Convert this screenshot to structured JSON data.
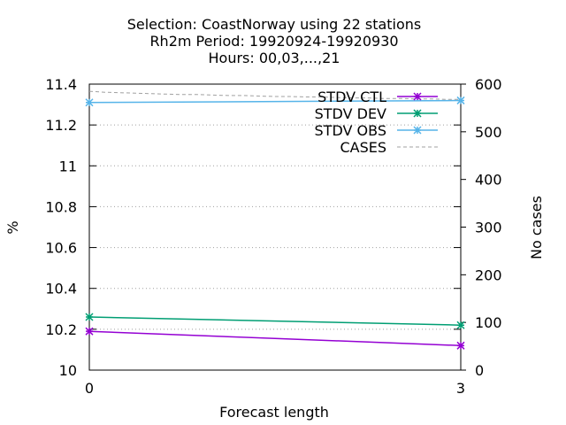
{
  "chart_data": {
    "type": "line",
    "title_lines": [
      "Selection: CoastNorway using    22 stations",
      "Rh2m   Period: 19920924-19920930",
      "Hours:  00,03,...,21"
    ],
    "xlabel": "Forecast length",
    "ylabel": "%",
    "y2label": "No cases",
    "x_ticks": [
      "0",
      "3"
    ],
    "xlim": [
      0,
      3
    ],
    "y_ticks": [
      "10",
      "10.2",
      "10.4",
      "10.6",
      "10.8",
      "11",
      "11.2",
      "11.4"
    ],
    "ylim": [
      10,
      11.4
    ],
    "y2_ticks": [
      "0",
      "100",
      "200",
      "300",
      "400",
      "500",
      "600"
    ],
    "y2lim": [
      0,
      600
    ],
    "grid": true,
    "legend_position": "top-right",
    "series": [
      {
        "name": "STDV CTL",
        "axis": "y",
        "color": "#9400d3",
        "marker": "star",
        "x": [
          0,
          3
        ],
        "values": [
          10.19,
          10.12
        ]
      },
      {
        "name": "STDV DEV",
        "axis": "y",
        "color": "#009e73",
        "marker": "star",
        "x": [
          0,
          3
        ],
        "values": [
          10.26,
          10.22
        ]
      },
      {
        "name": "STDV OBS",
        "axis": "y",
        "color": "#56b4e9",
        "marker": "star",
        "x": [
          0,
          3
        ],
        "values": [
          11.31,
          11.32
        ]
      },
      {
        "name": "CASES",
        "axis": "y2",
        "color": "#a0a0a0",
        "marker": "none",
        "dashed": true,
        "x": [
          0,
          0.125,
          0.25,
          0.375,
          0.5,
          0.625,
          0.75,
          0.875,
          1,
          1.125,
          1.25,
          1.375,
          1.5,
          1.625,
          1.75,
          1.875,
          2,
          2.125,
          2.25,
          2.375,
          2.5,
          2.625,
          2.75,
          2.875,
          3
        ],
        "values": [
          585,
          583,
          582,
          581,
          580,
          579,
          578,
          578,
          577,
          576,
          576,
          575,
          574,
          574,
          573,
          573,
          572,
          571,
          571,
          570,
          570,
          569,
          569,
          568,
          568
        ]
      }
    ]
  }
}
